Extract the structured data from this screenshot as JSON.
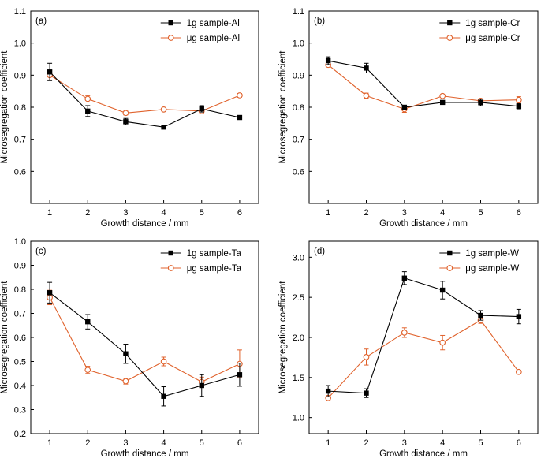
{
  "colors": {
    "series_1g": "#000000",
    "series_ug": "#e0622c"
  },
  "chart_data": [
    {
      "type": "line",
      "panel_label": "(a)",
      "xlabel": "Growth distance / mm",
      "ylabel": "Microsegregation coefficient",
      "x": [
        1,
        2,
        3,
        4,
        5,
        6
      ],
      "xlim": [
        0.5,
        6.5
      ],
      "ylim": [
        0.5,
        1.1
      ],
      "x_ticks": [
        "1",
        "2",
        "3",
        "4",
        "5",
        "6"
      ],
      "y_ticks": [
        "0.6",
        "0.7",
        "0.8",
        "0.9",
        "1.0",
        "1.1"
      ],
      "y_tick_values": [
        0.6,
        0.7,
        0.8,
        0.9,
        1.0,
        1.1
      ],
      "legend_position": "top-right",
      "series": [
        {
          "name": "1g sample-Al",
          "marker": "filled-square",
          "values": [
            0.91,
            0.788,
            0.755,
            0.738,
            0.795,
            0.768
          ],
          "errors": [
            0.027,
            0.017,
            0.01,
            0.004,
            0.01,
            0.004
          ]
        },
        {
          "name": "μg sample-Al",
          "marker": "open-circle",
          "values": [
            0.9,
            0.826,
            0.782,
            0.793,
            0.788,
            0.837
          ],
          "errors": [
            0.015,
            0.01,
            0.006,
            0.004,
            0.006,
            0.006
          ]
        }
      ]
    },
    {
      "type": "line",
      "panel_label": "(b)",
      "xlabel": "Growth distance / mm",
      "ylabel": "Microsegregation coefficient",
      "x": [
        1,
        2,
        3,
        4,
        5,
        6
      ],
      "xlim": [
        0.5,
        6.5
      ],
      "ylim": [
        0.5,
        1.1
      ],
      "x_ticks": [
        "1",
        "2",
        "3",
        "4",
        "5",
        "6"
      ],
      "y_ticks": [
        "0.6",
        "0.7",
        "0.8",
        "0.9",
        "1.0",
        "1.1"
      ],
      "y_tick_values": [
        0.6,
        0.7,
        0.8,
        0.9,
        1.0,
        1.1
      ],
      "legend_position": "top-right",
      "series": [
        {
          "name": "1g sample-Cr",
          "marker": "filled-square",
          "values": [
            0.945,
            0.922,
            0.8,
            0.815,
            0.815,
            0.803
          ],
          "errors": [
            0.012,
            0.015,
            0.006,
            0.004,
            0.01,
            0.008
          ]
        },
        {
          "name": "μg sample-Cr",
          "marker": "open-circle",
          "values": [
            0.932,
            0.836,
            0.794,
            0.835,
            0.82,
            0.823
          ],
          "errors": [
            0.005,
            0.008,
            0.01,
            0.004,
            0.006,
            0.01
          ]
        }
      ]
    },
    {
      "type": "line",
      "panel_label": "(c)",
      "xlabel": "Growth distance / mm",
      "ylabel": "Microsegregation coefficient",
      "x": [
        1,
        2,
        3,
        4,
        5,
        6
      ],
      "xlim": [
        0.5,
        6.5
      ],
      "ylim": [
        0.2,
        1.0
      ],
      "x_ticks": [
        "1",
        "2",
        "3",
        "4",
        "5",
        "6"
      ],
      "y_ticks": [
        "0.2",
        "0.3",
        "0.4",
        "0.5",
        "0.6",
        "0.7",
        "0.8",
        "0.9",
        "1.0"
      ],
      "y_tick_values": [
        0.2,
        0.3,
        0.4,
        0.5,
        0.6,
        0.7,
        0.8,
        0.9,
        1.0
      ],
      "legend_position": "top-right",
      "series": [
        {
          "name": "1g sample-Ta",
          "marker": "filled-square",
          "values": [
            0.786,
            0.665,
            0.532,
            0.355,
            0.4,
            0.445
          ],
          "errors": [
            0.043,
            0.03,
            0.04,
            0.04,
            0.045,
            0.048
          ]
        },
        {
          "name": "μg sample-Ta",
          "marker": "open-circle",
          "values": [
            0.766,
            0.465,
            0.418,
            0.5,
            0.415,
            0.49
          ],
          "errors": [
            0.03,
            0.015,
            0.012,
            0.018,
            0.02,
            0.058
          ]
        }
      ]
    },
    {
      "type": "line",
      "panel_label": "(d)",
      "xlabel": "Growth distance / mm",
      "ylabel": "Microsegregation coefficient",
      "x": [
        1,
        2,
        3,
        4,
        5,
        6
      ],
      "xlim": [
        0.5,
        6.5
      ],
      "ylim": [
        0.8,
        3.2
      ],
      "x_ticks": [
        "1",
        "2",
        "3",
        "4",
        "5",
        "6"
      ],
      "y_ticks": [
        "1.0",
        "1.5",
        "2.0",
        "2.5",
        "3.0"
      ],
      "y_tick_values": [
        1.0,
        1.5,
        2.0,
        2.5,
        3.0
      ],
      "legend_position": "top-right",
      "series": [
        {
          "name": "1g sample-W",
          "marker": "filled-square",
          "values": [
            1.33,
            1.305,
            2.74,
            2.59,
            2.275,
            2.26
          ],
          "errors": [
            0.07,
            0.055,
            0.08,
            0.11,
            0.06,
            0.09
          ]
        },
        {
          "name": "μg sample-W",
          "marker": "open-circle",
          "values": [
            1.245,
            1.755,
            2.06,
            1.935,
            2.215,
            1.57
          ],
          "errors": [
            0.03,
            0.1,
            0.06,
            0.09,
            0.04,
            0.02
          ]
        }
      ]
    }
  ]
}
